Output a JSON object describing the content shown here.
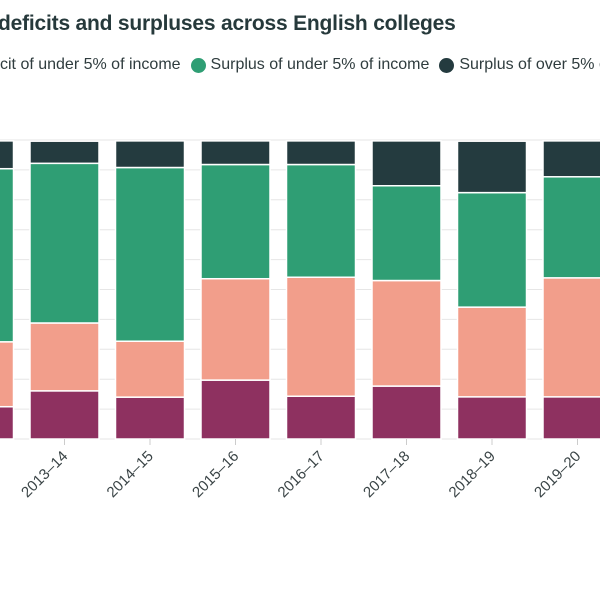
{
  "chart_data": {
    "type": "bar",
    "stacked": true,
    "normalized_percent": true,
    "title": "deficits and surpluses across English colleges",
    "categories": [
      "",
      "2013–14",
      "2014–15",
      "2015–16",
      "2016–17",
      "2017–18",
      "2018–19",
      "2019–20"
    ],
    "series": [
      {
        "name": "",
        "color": "#8e3160",
        "values": [
          10.8,
          16.1,
          14.0,
          19.7,
          14.3,
          17.7,
          14.1,
          14.1
        ]
      },
      {
        "name": "cit of under 5% of income",
        "color": "#f29e8b",
        "values": [
          21.7,
          22.7,
          18.7,
          33.9,
          39.8,
          35.3,
          30.0,
          39.8
        ]
      },
      {
        "name": "Surplus of under 5% of income",
        "color": "#2f9e74",
        "values": [
          57.9,
          53.4,
          58.1,
          38.2,
          37.7,
          31.7,
          38.3,
          33.8
        ]
      },
      {
        "name": "Surplus of over 5% o",
        "color": "#243b3f",
        "values": [
          9.3,
          7.4,
          8.9,
          7.9,
          7.9,
          15.0,
          17.2,
          12.0
        ]
      }
    ],
    "ylim": [
      0,
      100
    ],
    "grid": true,
    "legend_position": "top"
  }
}
